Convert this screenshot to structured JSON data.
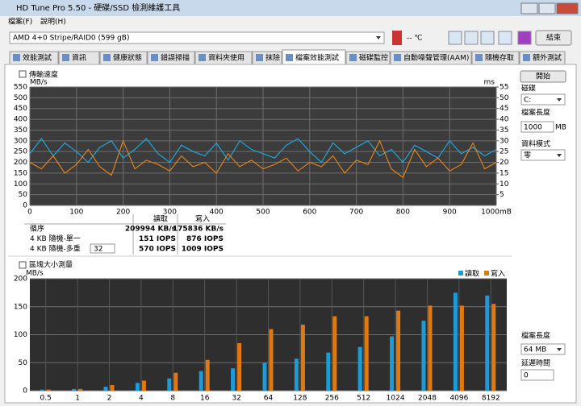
{
  "window": {
    "title": "HD Tune Pro 5.50 - 硬碟/SSD 檢測維護工具",
    "menu": [
      "檔案(F)",
      "說明(H)"
    ],
    "drive": "AMD    4+0 Stripe/RAID0 (599 gB)",
    "temperature": "-- ℃",
    "exit": "結束"
  },
  "tabs": [
    "效能測試",
    "資訊",
    "健康狀態",
    "錯誤掃描",
    "資料夾使用",
    "抹除",
    "檔案效能測試",
    "磁碟監控",
    "自動噪聲管理(AAM)",
    "隨機存取",
    "額外測試"
  ],
  "panel": {
    "start": "開始",
    "disk_label": "磁碟",
    "disk": "C:",
    "file_length_label": "檔案長度",
    "file_length": "1000",
    "file_length_unit": "MB",
    "data_mode_label": "資料模式",
    "data_mode": "零",
    "block_length_label": "檔案長度",
    "block_length": "64 MB",
    "delay_label": "延遲時間",
    "delay": "0"
  },
  "results": {
    "header": [
      "讀取",
      "寫入"
    ],
    "queue_depth": "32",
    "rows": [
      [
        "循序",
        "209994 KB/s",
        "175836 KB/s"
      ],
      [
        "4 KB 隨機-單一",
        "151 IOPS",
        "876 IOPS"
      ],
      [
        "4 KB 隨機-多重",
        "570 IOPS",
        "1009 IOPS"
      ]
    ]
  },
  "chart_data": [
    {
      "type": "line",
      "title": "傳輸速度",
      "ylabel": "MB/s",
      "y2label": "ms",
      "x": [
        0,
        25,
        50,
        75,
        100,
        125,
        150,
        175,
        200,
        225,
        250,
        275,
        300,
        325,
        350,
        375,
        400,
        425,
        450,
        475,
        500,
        525,
        550,
        575,
        600,
        625,
        650,
        675,
        700,
        725,
        750,
        775,
        800,
        825,
        850,
        875,
        900,
        925,
        950,
        975,
        1000
      ],
      "series": [
        {
          "color": "#1ea6d8",
          "values": [
            240,
            310,
            230,
            290,
            250,
            200,
            270,
            300,
            220,
            260,
            310,
            240,
            200,
            280,
            250,
            230,
            290,
            210,
            300,
            260,
            240,
            220,
            280,
            310,
            250,
            200,
            290,
            240,
            270,
            300,
            230,
            260,
            200,
            280,
            250,
            220,
            300,
            240,
            270,
            230,
            260
          ]
        },
        {
          "color": "#e0801a",
          "values": [
            200,
            170,
            230,
            150,
            190,
            260,
            180,
            140,
            300,
            170,
            210,
            190,
            160,
            230,
            180,
            200,
            150,
            240,
            180,
            210,
            170,
            190,
            220,
            160,
            200,
            180,
            230,
            150,
            210,
            190,
            300,
            170,
            130,
            260,
            180,
            220,
            160,
            190,
            290,
            170,
            200
          ]
        }
      ],
      "xlim": [
        0,
        1000
      ],
      "xticks": [
        0,
        100,
        200,
        300,
        400,
        500,
        600,
        700,
        800,
        900,
        {
          "value": 1000,
          "label": "1000mB"
        }
      ],
      "ylim": [
        0,
        550
      ],
      "yticks": [
        0,
        50,
        100,
        150,
        200,
        250,
        300,
        350,
        400,
        450,
        500,
        550
      ],
      "y2lim": [
        0,
        55
      ],
      "y2ticks": [
        5,
        10,
        15,
        20,
        25,
        30,
        35,
        40,
        45,
        50,
        55
      ],
      "grid": true
    },
    {
      "type": "bar",
      "title": "區塊大小測量",
      "ylabel": "MB/s",
      "legend": "top-right",
      "categories": [
        "0.5",
        "1",
        "2",
        "4",
        "8",
        "16",
        "32",
        "64",
        "128",
        "256",
        "512",
        "1024",
        "2048",
        "4096",
        "8192"
      ],
      "series": [
        {
          "name": "讀取",
          "color": "#1e9ad6",
          "values": [
            2,
            3,
            7,
            14,
            22,
            35,
            40,
            50,
            57,
            68,
            78,
            97,
            125,
            175,
            170
          ]
        },
        {
          "name": "寫入",
          "color": "#e07a10",
          "values": [
            2,
            3,
            10,
            18,
            32,
            55,
            85,
            110,
            118,
            133,
            133,
            143,
            152,
            152,
            155
          ]
        }
      ],
      "ylim": [
        0,
        200
      ],
      "yticks": [
        0,
        50,
        100,
        150,
        200
      ],
      "grid": true
    }
  ]
}
